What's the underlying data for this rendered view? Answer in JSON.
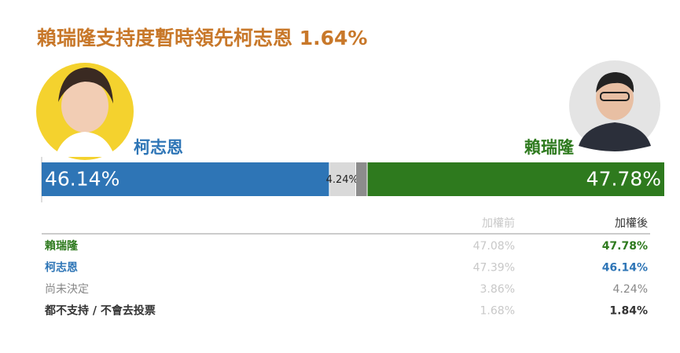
{
  "chart_data": {
    "type": "stacked-hbar",
    "title": "賴瑞隆支持度暫時領先柯志恩 1.64%",
    "xlim": [
      0,
      100
    ],
    "series": [
      {
        "name": "柯志恩",
        "color": "#2e75b6",
        "values": [
          46.14
        ],
        "value_labels": [
          "46.14%"
        ]
      },
      {
        "color": "#d9d9d9",
        "values": [
          4.24
        ],
        "value_labels": [
          "4.24%"
        ]
      },
      {
        "color": "#8c8c8c",
        "values": [
          1.84
        ]
      },
      {
        "name": "賴瑞隆",
        "color": "#2e7a1e",
        "values": [
          47.78
        ],
        "value_labels": [
          "47.78%"
        ]
      }
    ]
  },
  "table": {
    "header": [
      "加權前",
      "加權後"
    ],
    "rows": [
      [
        "賴瑞隆",
        "47.08%",
        "47.78%"
      ],
      [
        "柯志恩",
        "47.39%",
        "46.14%"
      ],
      [
        "尚未決定",
        "3.86%",
        "4.24%"
      ],
      [
        "都不支持 / 不會去投票",
        "1.68%",
        "1.84%"
      ]
    ]
  }
}
